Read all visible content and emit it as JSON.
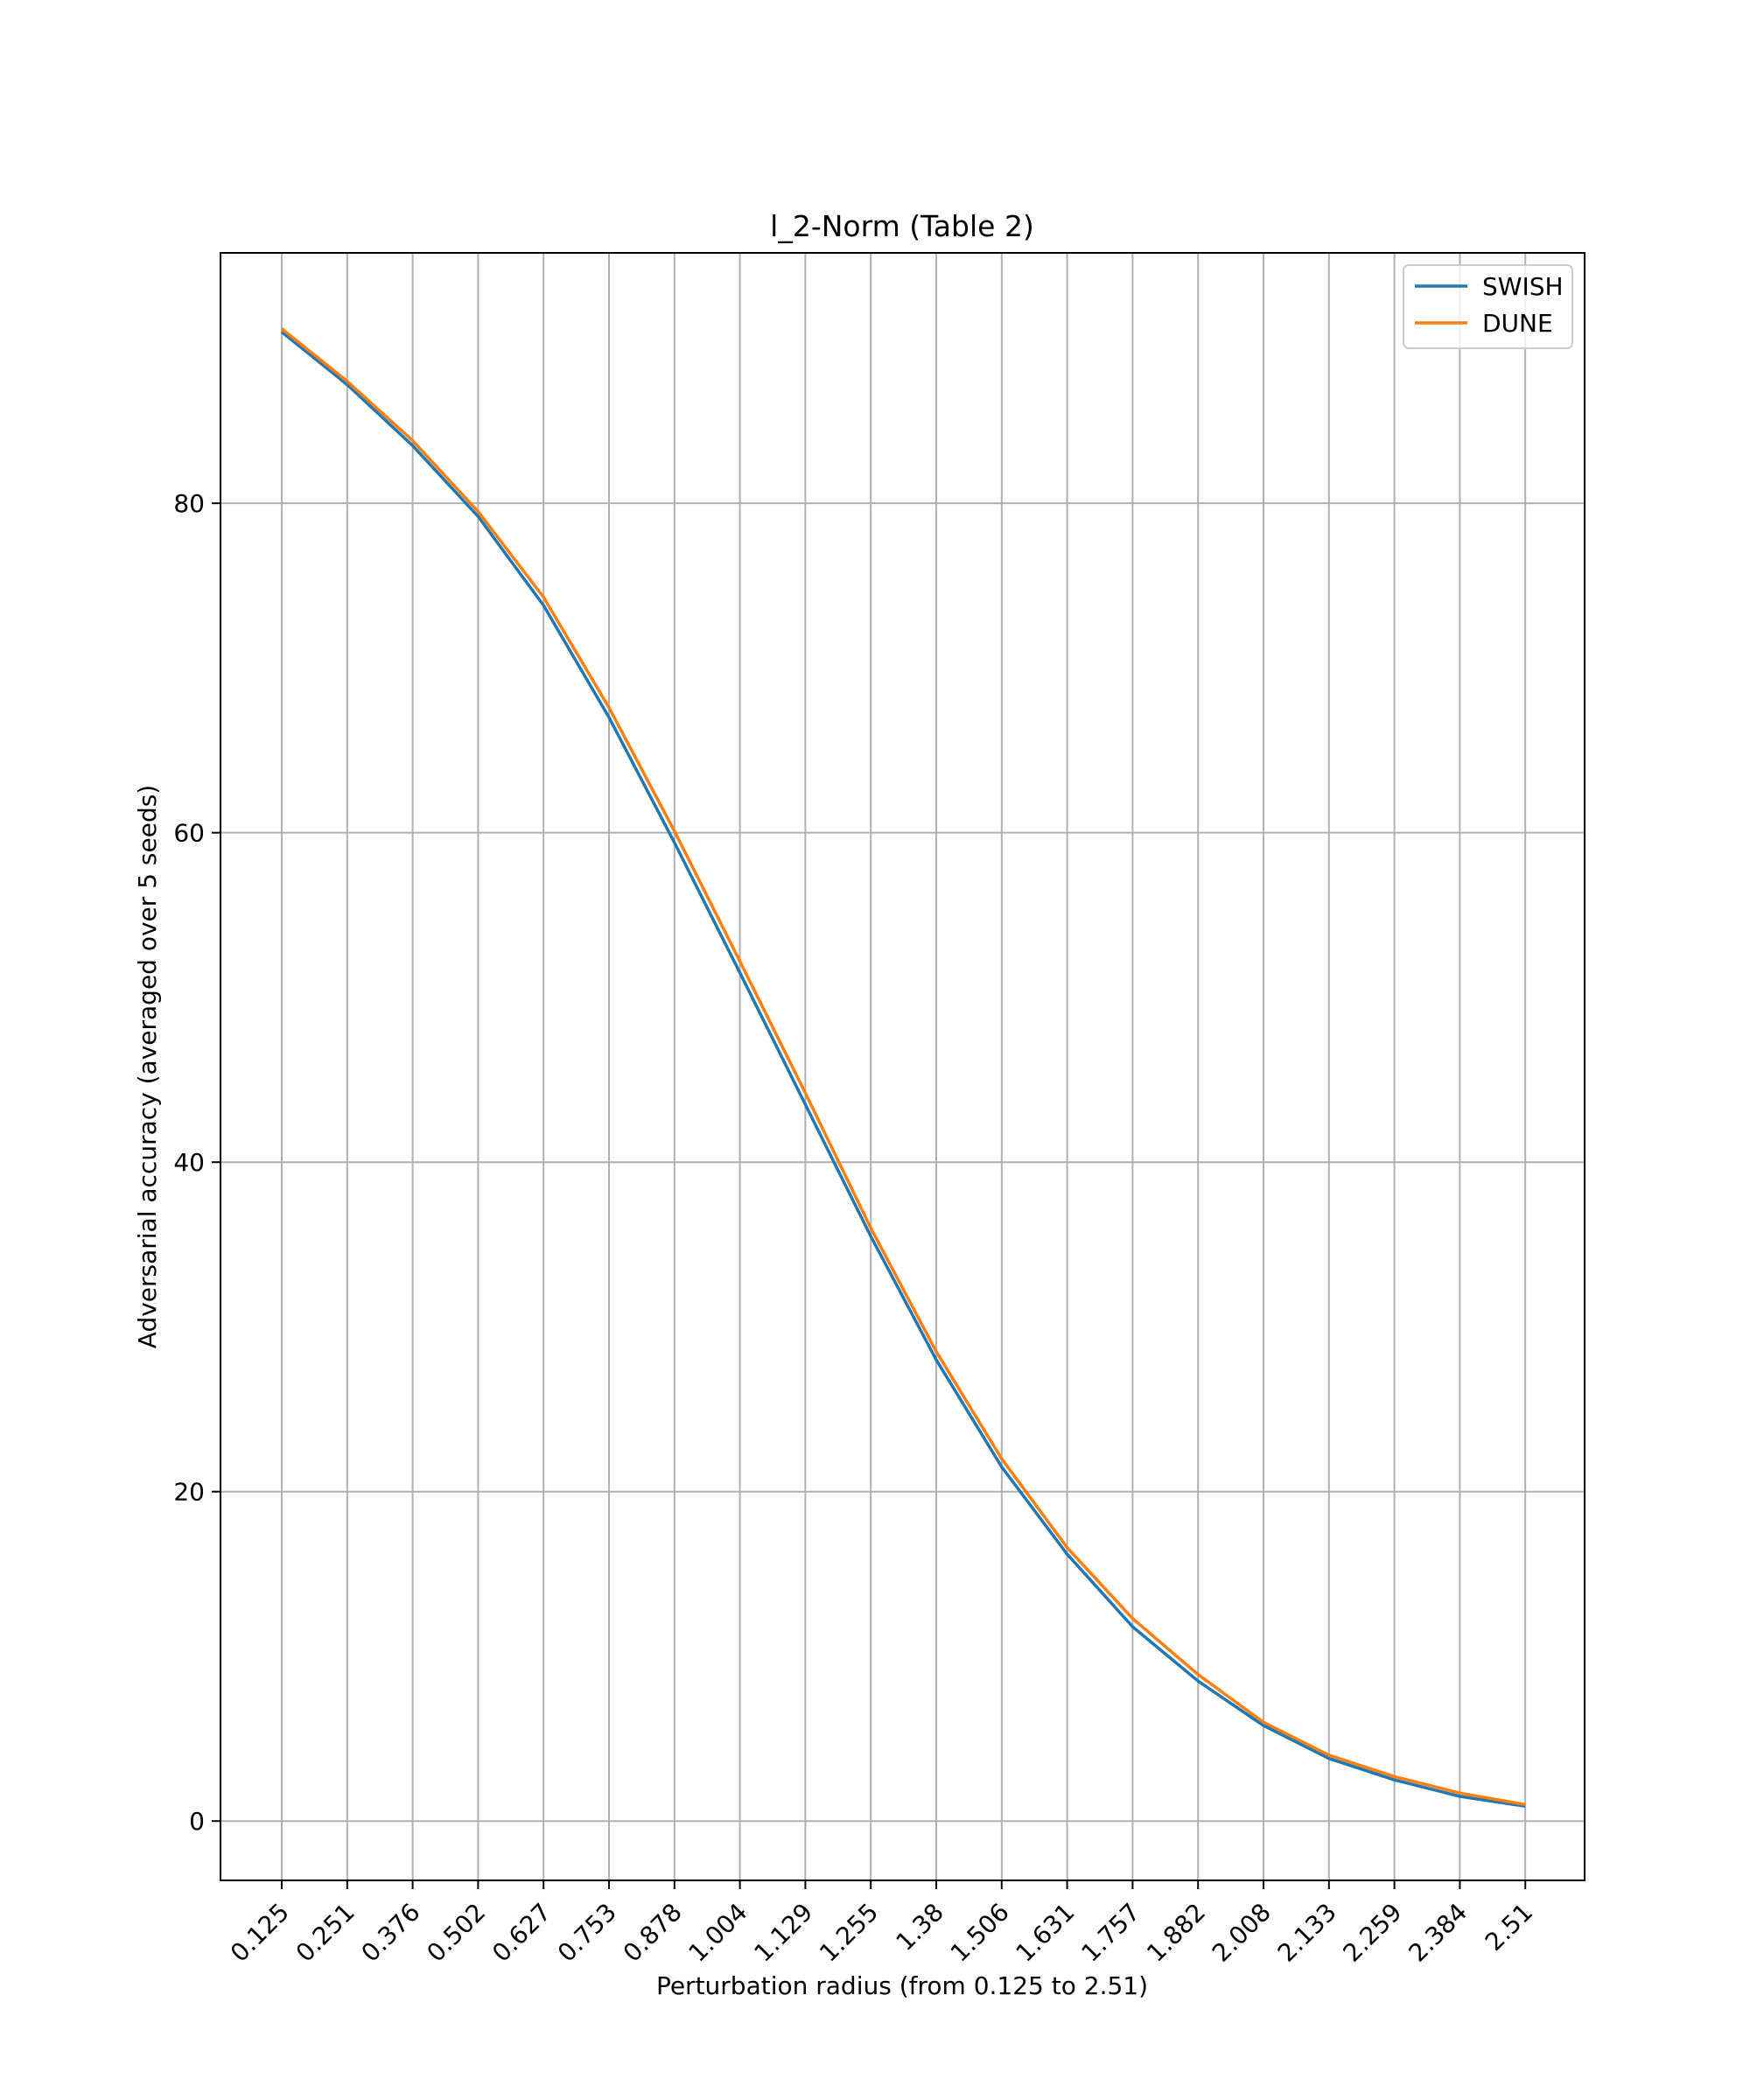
{
  "chart_data": {
    "type": "line",
    "title": "l_2-Norm (Table 2)",
    "xlabel": "Perturbation radius (from 0.125 to 2.51)",
    "ylabel": "Adversarial accuracy (averaged over 5 seeds)",
    "categories": [
      "0.125",
      "0.251",
      "0.376",
      "0.502",
      "0.627",
      "0.753",
      "0.878",
      "1.004",
      "1.129",
      "1.255",
      "1.38",
      "1.506",
      "1.631",
      "1.757",
      "1.882",
      "2.008",
      "2.133",
      "2.259",
      "2.384",
      "2.51"
    ],
    "ylim": [
      -3.6,
      95.2
    ],
    "yticks": [
      0,
      20,
      40,
      60,
      80
    ],
    "grid": true,
    "legend_position": "top-right",
    "series": [
      {
        "name": "SWISH",
        "color": "#1f77b4",
        "values": [
          90.4,
          87.2,
          83.5,
          79.2,
          73.8,
          67.0,
          59.4,
          51.5,
          43.5,
          35.5,
          28.0,
          21.5,
          16.2,
          11.8,
          8.5,
          5.8,
          3.8,
          2.5,
          1.5,
          0.9
        ]
      },
      {
        "name": "DUNE",
        "color": "#ff7f0e",
        "values": [
          90.6,
          87.4,
          83.8,
          79.5,
          74.3,
          67.6,
          60.1,
          52.2,
          44.2,
          36.0,
          28.5,
          22.0,
          16.6,
          12.3,
          8.9,
          6.0,
          4.0,
          2.7,
          1.7,
          1.0
        ]
      }
    ]
  }
}
